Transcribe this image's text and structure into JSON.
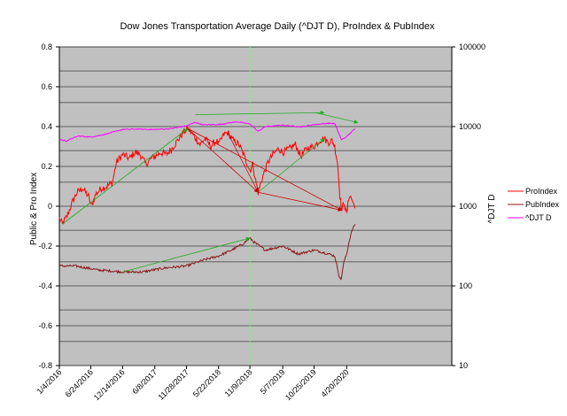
{
  "chart_data": {
    "type": "line",
    "title": "Dow Jones Transportation Average Daily (^DJT D), ProIndex & PubIndex",
    "ylabel": "Public & Pro Index",
    "y2label": "^DJT D",
    "ylim": [
      -0.8,
      0.8
    ],
    "y_ticks": [
      "0.8",
      "0.6",
      "0.4",
      "0.2",
      "0",
      "-0.2",
      "-0.4",
      "-0.6",
      "-0.8"
    ],
    "y2_scale": "log",
    "y2lim": [
      10,
      100000
    ],
    "y2_ticks": [
      "100000",
      "10000",
      "1000",
      "100",
      "10"
    ],
    "xlim": [
      "2016-01-04",
      "2021-11-15"
    ],
    "x_ticks": [
      "1/4/2016",
      "6/24/2016",
      "12/14/2016",
      "6/8/2017",
      "11/28/2017",
      "5/22/2018",
      "11/9/2018",
      "5/7/2019",
      "10/25/2019",
      "4/20/2020"
    ],
    "grid": "horizontal lines",
    "legend": "right",
    "background": "#c0c0c0",
    "vertical_marker": "2018-11-09",
    "series": [
      {
        "name": "ProIndex",
        "axis": "left",
        "color": "#ff0000",
        "points": [
          [
            "2016-01-04",
            -0.06
          ],
          [
            "2016-01-20",
            -0.09
          ],
          [
            "2016-02-15",
            -0.05
          ],
          [
            "2016-03-15",
            0.02
          ],
          [
            "2016-04-10",
            0.07
          ],
          [
            "2016-05-10",
            0.09
          ],
          [
            "2016-06-10",
            0.05
          ],
          [
            "2016-06-27",
            0.0
          ],
          [
            "2016-07-20",
            0.06
          ],
          [
            "2016-08-20",
            0.09
          ],
          [
            "2016-09-20",
            0.1
          ],
          [
            "2016-10-20",
            0.12
          ],
          [
            "2016-11-10",
            0.22
          ],
          [
            "2016-12-14",
            0.26
          ],
          [
            "2017-01-20",
            0.24
          ],
          [
            "2017-02-20",
            0.27
          ],
          [
            "2017-03-20",
            0.26
          ],
          [
            "2017-04-20",
            0.21
          ],
          [
            "2017-05-20",
            0.24
          ],
          [
            "2017-06-08",
            0.25
          ],
          [
            "2017-07-10",
            0.27
          ],
          [
            "2017-08-10",
            0.26
          ],
          [
            "2017-09-10",
            0.29
          ],
          [
            "2017-10-10",
            0.33
          ],
          [
            "2017-11-10",
            0.37
          ],
          [
            "2017-12-05",
            0.39
          ],
          [
            "2018-01-10",
            0.35
          ],
          [
            "2018-02-10",
            0.31
          ],
          [
            "2018-03-10",
            0.34
          ],
          [
            "2018-04-10",
            0.3
          ],
          [
            "2018-05-10",
            0.33
          ],
          [
            "2018-05-22",
            0.31
          ],
          [
            "2018-06-20",
            0.36
          ],
          [
            "2018-07-10",
            0.37
          ],
          [
            "2018-08-10",
            0.33
          ],
          [
            "2018-09-10",
            0.31
          ],
          [
            "2018-10-10",
            0.25
          ],
          [
            "2018-11-09",
            0.18
          ],
          [
            "2018-11-25",
            0.21
          ],
          [
            "2018-12-10",
            0.13
          ],
          [
            "2018-12-24",
            0.07
          ],
          [
            "2019-01-15",
            0.14
          ],
          [
            "2019-02-15",
            0.22
          ],
          [
            "2019-03-15",
            0.26
          ],
          [
            "2019-04-15",
            0.29
          ],
          [
            "2019-05-07",
            0.27
          ],
          [
            "2019-06-15",
            0.29
          ],
          [
            "2019-07-15",
            0.31
          ],
          [
            "2019-08-15",
            0.25
          ],
          [
            "2019-09-15",
            0.29
          ],
          [
            "2019-10-25",
            0.3
          ],
          [
            "2019-11-25",
            0.33
          ],
          [
            "2019-12-20",
            0.34
          ],
          [
            "2020-01-10",
            0.32
          ],
          [
            "2020-02-01",
            0.33
          ],
          [
            "2020-02-15",
            0.3
          ],
          [
            "2020-03-01",
            0.22
          ],
          [
            "2020-03-15",
            0.05
          ],
          [
            "2020-03-25",
            -0.02
          ],
          [
            "2020-04-05",
            0.02
          ],
          [
            "2020-04-20",
            -0.04
          ],
          [
            "2020-05-05",
            0.06
          ],
          [
            "2020-05-20",
            0.03
          ],
          [
            "2020-06-05",
            -0.01
          ]
        ]
      },
      {
        "name": "PubIndex",
        "axis": "left",
        "color": "#8b1a1a",
        "points": [
          [
            "2016-01-04",
            -0.3
          ],
          [
            "2016-04-01",
            -0.3
          ],
          [
            "2016-08-01",
            -0.32
          ],
          [
            "2016-12-14",
            -0.33
          ],
          [
            "2017-04-01",
            -0.33
          ],
          [
            "2017-08-01",
            -0.31
          ],
          [
            "2017-11-28",
            -0.3
          ],
          [
            "2018-03-01",
            -0.27
          ],
          [
            "2018-05-22",
            -0.25
          ],
          [
            "2018-08-01",
            -0.22
          ],
          [
            "2018-10-01",
            -0.19
          ],
          [
            "2018-11-09",
            -0.16
          ],
          [
            "2018-12-01",
            -0.18
          ],
          [
            "2019-02-01",
            -0.22
          ],
          [
            "2019-05-07",
            -0.2
          ],
          [
            "2019-08-01",
            -0.24
          ],
          [
            "2019-10-25",
            -0.22
          ],
          [
            "2020-01-15",
            -0.24
          ],
          [
            "2020-02-15",
            -0.25
          ],
          [
            "2020-03-10",
            -0.35
          ],
          [
            "2020-03-20",
            -0.37
          ],
          [
            "2020-04-05",
            -0.28
          ],
          [
            "2020-04-20",
            -0.24
          ],
          [
            "2020-05-05",
            -0.17
          ],
          [
            "2020-05-20",
            -0.12
          ],
          [
            "2020-06-05",
            -0.09
          ]
        ]
      },
      {
        "name": "^DJT D",
        "axis": "right",
        "color": "#ff00ff",
        "points": [
          [
            "2016-01-04",
            6900
          ],
          [
            "2016-02-11",
            6600
          ],
          [
            "2016-04-15",
            7600
          ],
          [
            "2016-06-24",
            7400
          ],
          [
            "2016-09-01",
            7900
          ],
          [
            "2016-12-14",
            9200
          ],
          [
            "2017-03-01",
            9300
          ],
          [
            "2017-06-08",
            9200
          ],
          [
            "2017-09-01",
            9400
          ],
          [
            "2017-11-28",
            10200
          ],
          [
            "2018-01-15",
            11300
          ],
          [
            "2018-03-01",
            10500
          ],
          [
            "2018-05-22",
            10600
          ],
          [
            "2018-08-30",
            11500
          ],
          [
            "2018-11-09",
            10800
          ],
          [
            "2018-12-24",
            8700
          ],
          [
            "2019-02-01",
            10000
          ],
          [
            "2019-05-07",
            10400
          ],
          [
            "2019-08-15",
            9900
          ],
          [
            "2019-10-25",
            10600
          ],
          [
            "2020-01-15",
            11000
          ],
          [
            "2020-02-15",
            10900
          ],
          [
            "2020-03-23",
            6800
          ],
          [
            "2020-04-20",
            7500
          ],
          [
            "2020-06-05",
            9400
          ]
        ]
      }
    ],
    "annotations": [
      {
        "type": "trendline",
        "color": "#22aa22",
        "from": [
          "2016-01-20",
          -0.09
        ],
        "to": [
          "2017-12-05",
          0.39
        ]
      },
      {
        "type": "trendline",
        "color": "#22aa22",
        "from": [
          "2018-12-24",
          0.07
        ],
        "to": [
          "2019-12-20",
          0.34
        ]
      },
      {
        "type": "trendline",
        "color": "#22aa22",
        "from": [
          "2016-12-14",
          -0.33
        ],
        "to": [
          "2018-11-09",
          -0.16
        ]
      },
      {
        "type": "trendline",
        "color": "#22aa22",
        "from": [
          "2019-11-01",
          0.47
        ],
        "to": [
          "2020-06-20",
          0.42
        ]
      },
      {
        "type": "trendline",
        "color": "#cc0000",
        "from": [
          "2017-12-05",
          0.39
        ],
        "to": [
          "2018-12-24",
          0.07
        ]
      },
      {
        "type": "trendline",
        "color": "#cc0000",
        "from": [
          "2017-12-05",
          0.39
        ],
        "to": [
          "2020-03-25",
          -0.02
        ]
      },
      {
        "type": "trendline",
        "color": "#cc0000",
        "from": [
          "2018-07-10",
          0.37
        ],
        "to": [
          "2018-12-24",
          0.07
        ]
      },
      {
        "type": "trendline",
        "color": "#cc0000",
        "from": [
          "2018-12-24",
          0.07
        ],
        "to": [
          "2020-03-25",
          -0.02
        ]
      },
      {
        "type": "trendline",
        "color": "#22aa22",
        "from": [
          "2018-01-15",
          0.46
        ],
        "to": [
          "2019-12-20",
          0.47
        ]
      }
    ]
  }
}
